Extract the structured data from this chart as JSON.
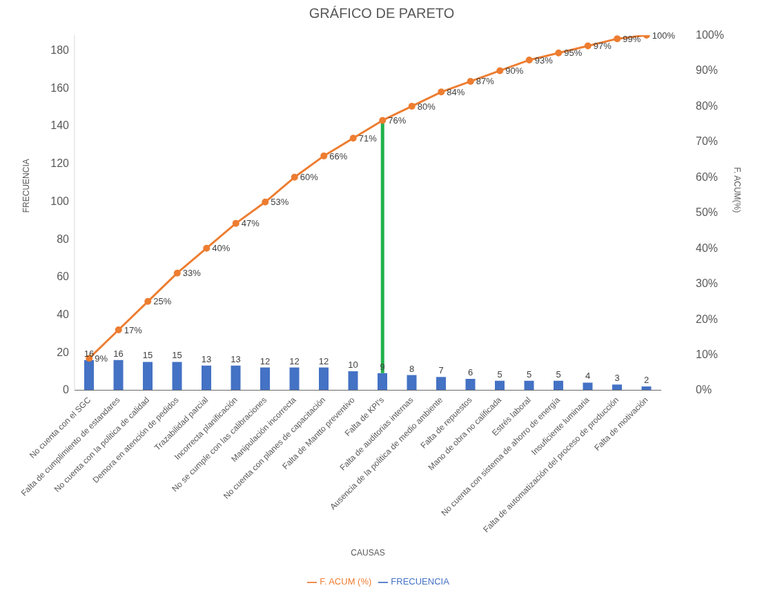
{
  "chart_data": {
    "type": "bar",
    "title": "GRÁFICO DE PARETO",
    "xlabel": "CAUSAS",
    "ylabel": "FRECUENCIA",
    "y2label": "F. ACUM(%)",
    "categories": [
      "No cuenta con el SGC",
      "Falta de cumplimiento de estandares",
      "No cuenta con la politica de calidad",
      "Demora en atención de pedidos",
      "Trazabilidad parcial",
      "Incorrecta planificación",
      "No se cumple con las calibraciones",
      "Manipulación incorrecta",
      "No cuenta con planes de capacitación",
      "Falta de Mantto preventivo",
      "Falta de KPI's",
      "Falta de auditorias internas",
      "Ausencia de la politica de medio ambiente",
      "Falta de repuestos",
      "Mano de obra no calificada",
      "Estrés laboral",
      "No cuenta con sistema de ahorro de energía",
      "Insuficiente luminaria",
      "Falta de automatización  del proceso de producción",
      "Falta de motivación"
    ],
    "series": [
      {
        "name": "FRECUENCIA",
        "color": "#4472c4",
        "values": [
          16,
          16,
          15,
          15,
          13,
          13,
          12,
          12,
          12,
          10,
          9,
          8,
          7,
          6,
          5,
          5,
          5,
          4,
          3,
          2
        ]
      },
      {
        "name": "F. ACUM (%)",
        "type": "line",
        "axis": "y2",
        "color": "#ed7d31",
        "values": [
          9,
          17,
          25,
          33,
          40,
          47,
          53,
          60,
          66,
          71,
          76,
          80,
          84,
          87,
          90,
          93,
          95,
          97,
          99,
          100
        ],
        "value_labels": [
          "9%",
          "17%",
          "25%",
          "33%",
          "40%",
          "47%",
          "53%",
          "60%",
          "66%",
          "71%",
          "76%",
          "80%",
          "84%",
          "87%",
          "90%",
          "93%",
          "95%",
          "97%",
          "99%",
          "100%"
        ]
      }
    ],
    "data_labels": true,
    "ylim": [
      0,
      188
    ],
    "yticks": [
      0,
      20,
      40,
      60,
      80,
      100,
      120,
      140,
      160,
      180
    ],
    "y2lim": [
      0,
      100
    ],
    "y2ticks": [
      {
        "value": 0,
        "label": "0%"
      },
      {
        "value": 10,
        "label": "10%"
      },
      {
        "value": 20,
        "label": "20%"
      },
      {
        "value": 30,
        "label": "30%"
      },
      {
        "value": 40,
        "label": "40%"
      },
      {
        "value": 50,
        "label": "50%"
      },
      {
        "value": 60,
        "label": "60%"
      },
      {
        "value": 70,
        "label": "70%"
      },
      {
        "value": 80,
        "label": "80%"
      },
      {
        "value": 90,
        "label": "90%"
      },
      {
        "value": 100,
        "label": "100%"
      }
    ],
    "ref_lines": [
      {
        "axis": "x",
        "value": "Falta de KPI's",
        "color": "#22b14c"
      }
    ],
    "marker": "circle",
    "grid": false,
    "legend": "bottom"
  }
}
